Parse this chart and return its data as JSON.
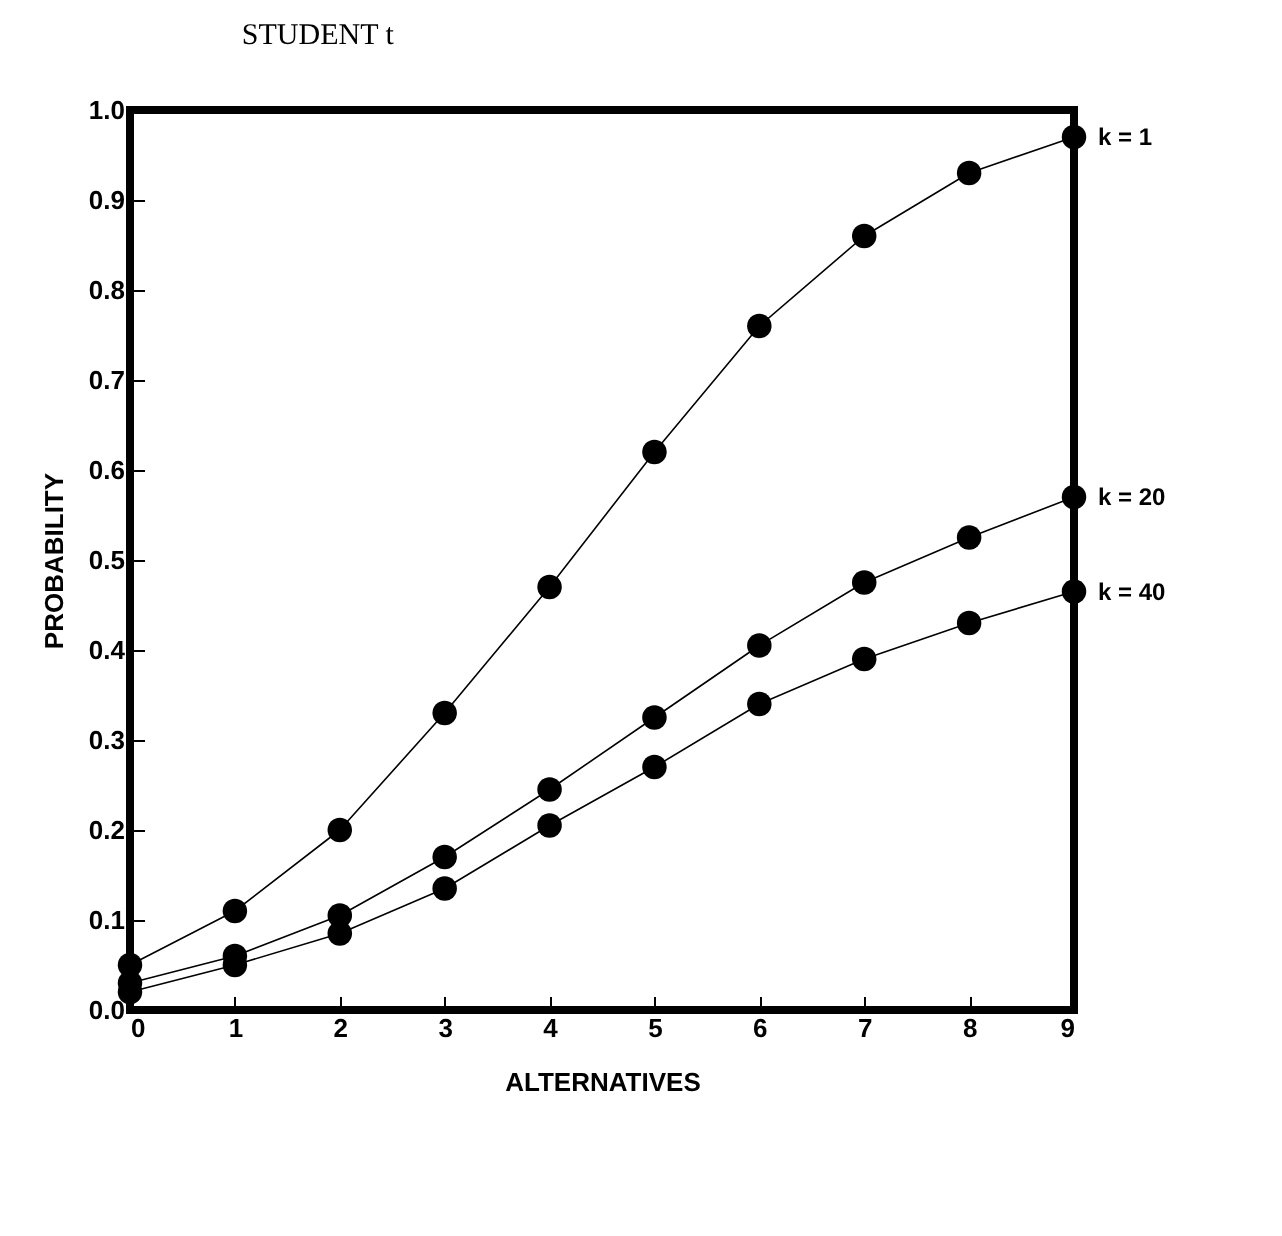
{
  "chart_data": {
    "type": "line",
    "title": "STUDENT t",
    "xlabel": "ALTERNATIVES",
    "ylabel": "PROBABILITY",
    "x": [
      0,
      1,
      2,
      3,
      4,
      5,
      6,
      7,
      8,
      9
    ],
    "series": [
      {
        "name": "k = 1",
        "color": "#000000",
        "values": [
          0.05,
          0.11,
          0.2,
          0.33,
          0.47,
          0.62,
          0.76,
          0.86,
          0.93,
          0.97
        ]
      },
      {
        "name": "k = 20",
        "color": "#000000",
        "values": [
          0.03,
          0.06,
          0.105,
          0.17,
          0.245,
          0.325,
          0.405,
          0.475,
          0.525,
          0.57
        ]
      },
      {
        "name": "k = 40",
        "color": "#000000",
        "values": [
          0.02,
          0.05,
          0.085,
          0.135,
          0.205,
          0.27,
          0.34,
          0.39,
          0.43,
          0.465
        ]
      }
    ],
    "xlim": [
      0,
      9
    ],
    "ylim": [
      0,
      1
    ],
    "xticks": [
      0,
      1,
      2,
      3,
      4,
      5,
      6,
      7,
      8,
      9
    ],
    "yticks": [
      {
        "value": 0,
        "label": "0.0"
      },
      {
        "value": 0.1,
        "label": "0.1"
      },
      {
        "value": 0.2,
        "label": "0.2"
      },
      {
        "value": 0.3,
        "label": "0.3"
      },
      {
        "value": 0.4,
        "label": "0.4"
      },
      {
        "value": 0.5,
        "label": "0.5"
      },
      {
        "value": 0.6,
        "label": "0.6"
      },
      {
        "value": 0.7,
        "label": "0.7"
      },
      {
        "value": 0.8,
        "label": "0.8"
      },
      {
        "value": 0.9,
        "label": "0.9"
      },
      {
        "value": 1,
        "label": "1.0"
      }
    ],
    "marker": "circle",
    "line_style": "solid",
    "legend": false,
    "grid": false
  }
}
